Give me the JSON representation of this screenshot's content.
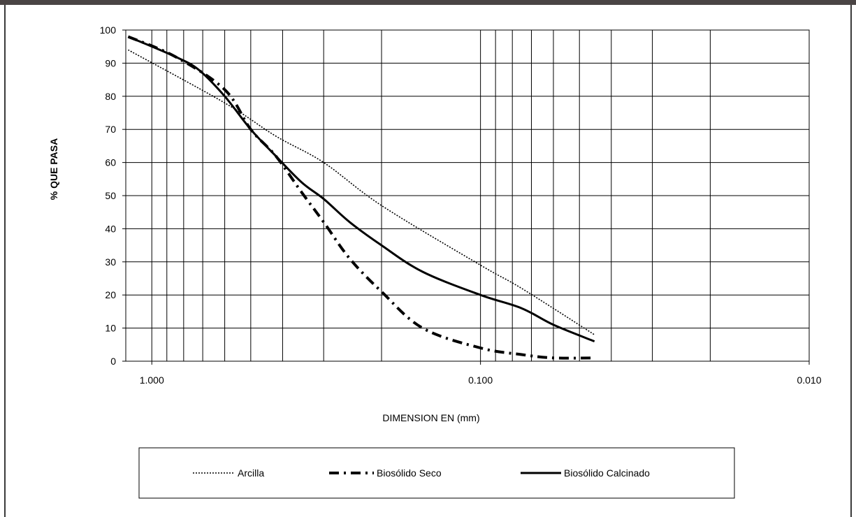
{
  "chart_data": {
    "type": "line",
    "title": "",
    "xlabel": "DIMENSION EN (mm)",
    "ylabel": "% QUE PASA",
    "x_scale": "log",
    "x_reversed": true,
    "xlim": [
      1.2,
      0.01
    ],
    "ylim": [
      0,
      100
    ],
    "x_tick_labels": [
      "1.000",
      "0.100",
      "0.010"
    ],
    "x_tick_values": [
      1.0,
      0.1,
      0.01
    ],
    "y_ticks": [
      0,
      10,
      20,
      30,
      40,
      50,
      60,
      70,
      80,
      90,
      100
    ],
    "grid": true,
    "legend_position": "bottom",
    "series": [
      {
        "name": "Arcilla",
        "style": "dotted",
        "color": "#000000",
        "x": [
          1.18,
          0.6,
          0.42,
          0.3,
          0.2,
          0.1,
          0.075,
          0.045
        ],
        "y": [
          94,
          78,
          68,
          60,
          47,
          29,
          22,
          8
        ]
      },
      {
        "name": "Biosólido Seco",
        "style": "dashdot",
        "color": "#000000",
        "x": [
          1.18,
          0.85,
          0.6,
          0.5,
          0.42,
          0.35,
          0.3,
          0.25,
          0.2,
          0.15,
          0.1,
          0.075,
          0.06,
          0.045
        ],
        "y": [
          98,
          92,
          82,
          70,
          62,
          51,
          42,
          31,
          21,
          10,
          4,
          2,
          1,
          1
        ]
      },
      {
        "name": "Biosólido Calcinado",
        "style": "solid",
        "color": "#000000",
        "x": [
          1.18,
          0.85,
          0.72,
          0.6,
          0.5,
          0.42,
          0.35,
          0.3,
          0.25,
          0.2,
          0.15,
          0.1,
          0.075,
          0.06,
          0.045
        ],
        "y": [
          98,
          92,
          88,
          80,
          70,
          62,
          54,
          49,
          42,
          35,
          27,
          20,
          16,
          11,
          6
        ]
      }
    ]
  }
}
